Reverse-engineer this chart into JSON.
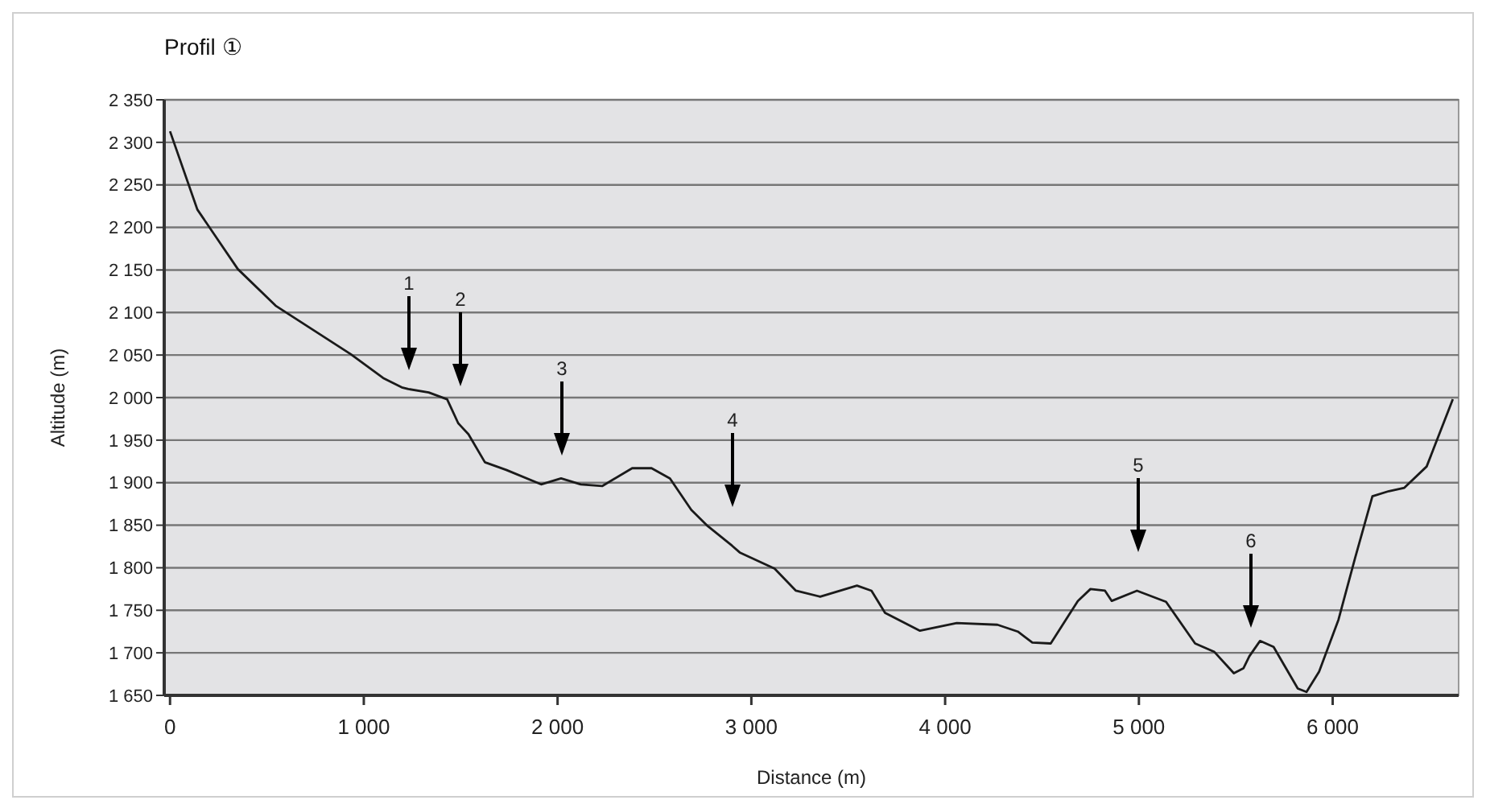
{
  "chart_data": {
    "type": "line",
    "title": "Profil ①",
    "xlabel": "Distance (m)",
    "ylabel": "Altitude (m)",
    "xlim": [
      -30,
      6650
    ],
    "ylim": [
      1650,
      2350
    ],
    "xticks": [
      0,
      {
        "value": 1000,
        "label": "1 000"
      },
      {
        "value": 2000,
        "label": "2 000"
      },
      {
        "value": 3000,
        "label": "3 000"
      },
      {
        "value": 4000,
        "label": "4 000"
      },
      {
        "value": 5000,
        "label": "5 000"
      },
      {
        "value": 6000,
        "label": "6 000"
      }
    ],
    "yticks": [
      {
        "value": 1650,
        "label": "1 650"
      },
      {
        "value": 1700,
        "label": "1 700"
      },
      {
        "value": 1750,
        "label": "1 750"
      },
      {
        "value": 1800,
        "label": "1 800"
      },
      {
        "value": 1850,
        "label": "1 850"
      },
      {
        "value": 1900,
        "label": "1 900"
      },
      {
        "value": 1950,
        "label": "1 950"
      },
      {
        "value": 2000,
        "label": "2 000"
      },
      {
        "value": 2050,
        "label": "2 050"
      },
      {
        "value": 2100,
        "label": "2 100"
      },
      {
        "value": 2150,
        "label": "2 150"
      },
      {
        "value": 2200,
        "label": "2 200"
      },
      {
        "value": 2250,
        "label": "2 250"
      },
      {
        "value": 2300,
        "label": "2 300"
      },
      {
        "value": 2350,
        "label": "2 350"
      }
    ],
    "grid": "y",
    "marker": "none",
    "line_style": "solid",
    "x": [
      0,
      141,
      350,
      545,
      933,
      1100,
      1196,
      1230,
      1335,
      1430,
      1487,
      1495,
      1540,
      1625,
      1735,
      1915,
      2018,
      2120,
      2230,
      2385,
      2485,
      2580,
      2690,
      2775,
      2900,
      2940,
      3120,
      3230,
      3355,
      3545,
      3620,
      3690,
      3870,
      4060,
      4270,
      4375,
      4450,
      4545,
      4685,
      4750,
      4825,
      4860,
      4990,
      5140,
      5290,
      5390,
      5490,
      5540,
      5570,
      5625,
      5695,
      5820,
      5865,
      5930,
      6030,
      6115,
      6205,
      6290,
      6370,
      6485,
      6620
    ],
    "series": [
      {
        "color": "#1a1a1a",
        "values": [
          2313,
          2221,
          2151,
          2108,
          2051,
          2023,
          2012,
          2010,
          2006,
          1998,
          1970,
          1968,
          1957,
          1924,
          1915,
          1898,
          1905,
          1898,
          1896,
          1917,
          1917,
          1905,
          1868,
          1849,
          1826,
          1818,
          1799,
          1773,
          1766,
          1779,
          1773,
          1747,
          1726,
          1735,
          1733,
          1725,
          1712,
          1711,
          1761,
          1775,
          1773,
          1761,
          1773,
          1760,
          1711,
          1701,
          1676,
          1682,
          1696,
          1714,
          1707,
          1658,
          1654,
          1678,
          1739,
          1811,
          1884,
          1890,
          1894,
          1919,
          1998
        ]
      }
    ],
    "annotations": [
      "1",
      "2",
      "3",
      "4",
      "5",
      "6"
    ]
  }
}
